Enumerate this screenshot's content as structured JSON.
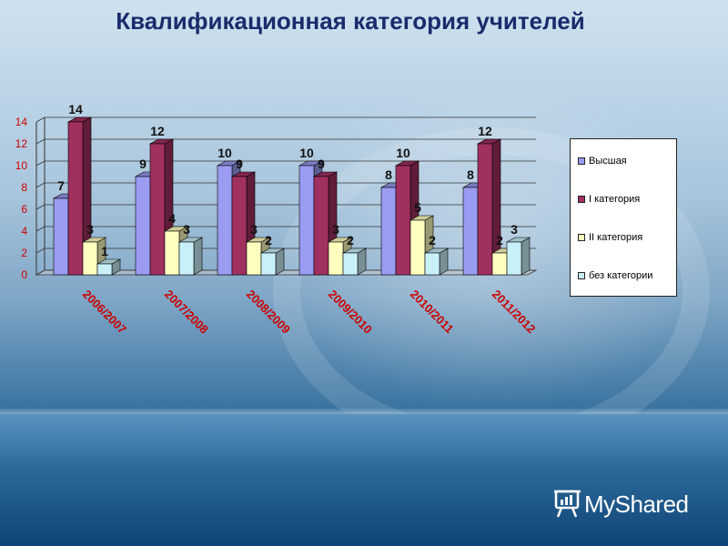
{
  "title": "Квалификационная категория учителей",
  "colors": {
    "title": "#1a2b6b",
    "label_red": "#cc0000"
  },
  "logo": {
    "text": "MyShared",
    "icon": "presentation-board-icon"
  },
  "chart_data": {
    "type": "bar",
    "title": "Квалификационная категория учителей",
    "categories": [
      "2006/2007",
      "2007/2008",
      "2008/2009",
      "2009/2010",
      "2010/2011",
      "2011/2012"
    ],
    "series": [
      {
        "name": "Высшая",
        "values": [
          7,
          9,
          10,
          10,
          8,
          8
        ],
        "color": "#9a9cf2"
      },
      {
        "name": "I категория",
        "values": [
          14,
          12,
          9,
          9,
          10,
          12
        ],
        "color": "#a03060"
      },
      {
        "name": "II категория",
        "values": [
          3,
          4,
          3,
          3,
          5,
          2
        ],
        "color": "#ffffc0"
      },
      {
        "name": "без категории",
        "values": [
          1,
          3,
          2,
          2,
          2,
          3
        ],
        "color": "#c8f0f8"
      }
    ],
    "ylim": [
      0,
      14
    ],
    "yticks": [
      0,
      2,
      4,
      6,
      8,
      10,
      12,
      14
    ],
    "grid": true,
    "legend_position": "right",
    "three_d": true
  }
}
